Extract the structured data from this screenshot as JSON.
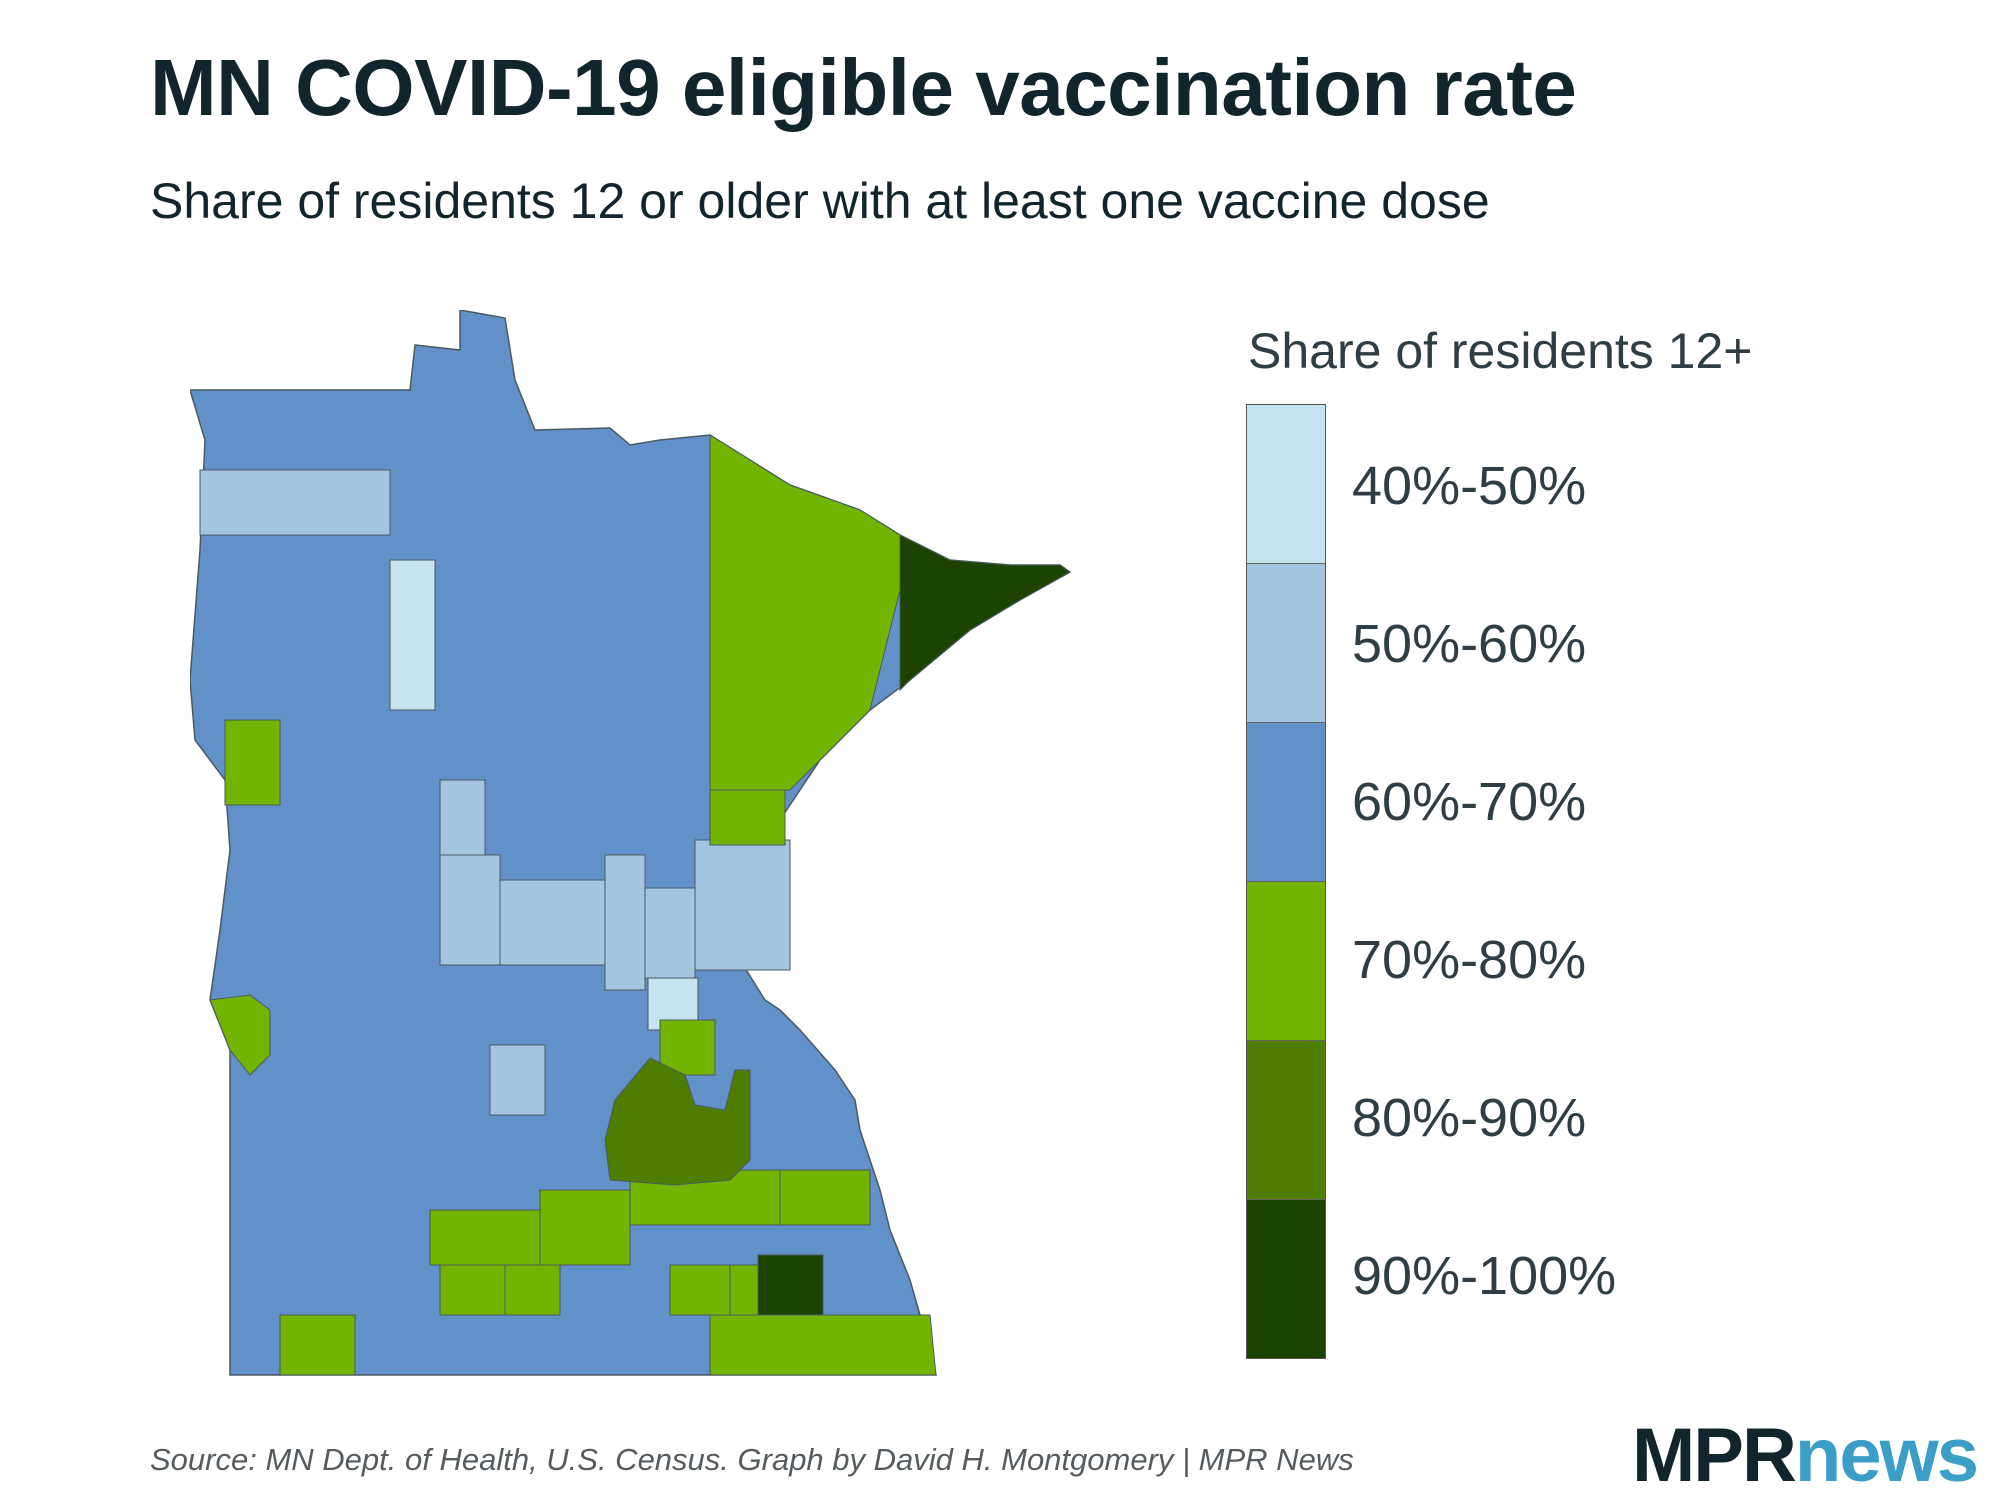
{
  "title": "MN COVID-19 eligible vaccination rate",
  "subtitle": "Share of residents 12 or older with at least one vaccine dose",
  "legend": {
    "title": "Share of residents 12+",
    "bins": [
      {
        "label": "40%-50%",
        "color": "#c6e4ef"
      },
      {
        "label": "50%-60%",
        "color": "#a3c6e0"
      },
      {
        "label": "60%-70%",
        "color": "#6290c8"
      },
      {
        "label": "70%-80%",
        "color": "#72b402"
      },
      {
        "label": "80%-90%",
        "color": "#4f7d00"
      },
      {
        "label": "90%-100%",
        "color": "#1d4300"
      }
    ]
  },
  "source": "Source: MN Dept. of Health, U.S. Census. Graph by David H. Montgomery | MPR News",
  "logo": {
    "mpr": "MPR",
    "news": "news"
  }
}
